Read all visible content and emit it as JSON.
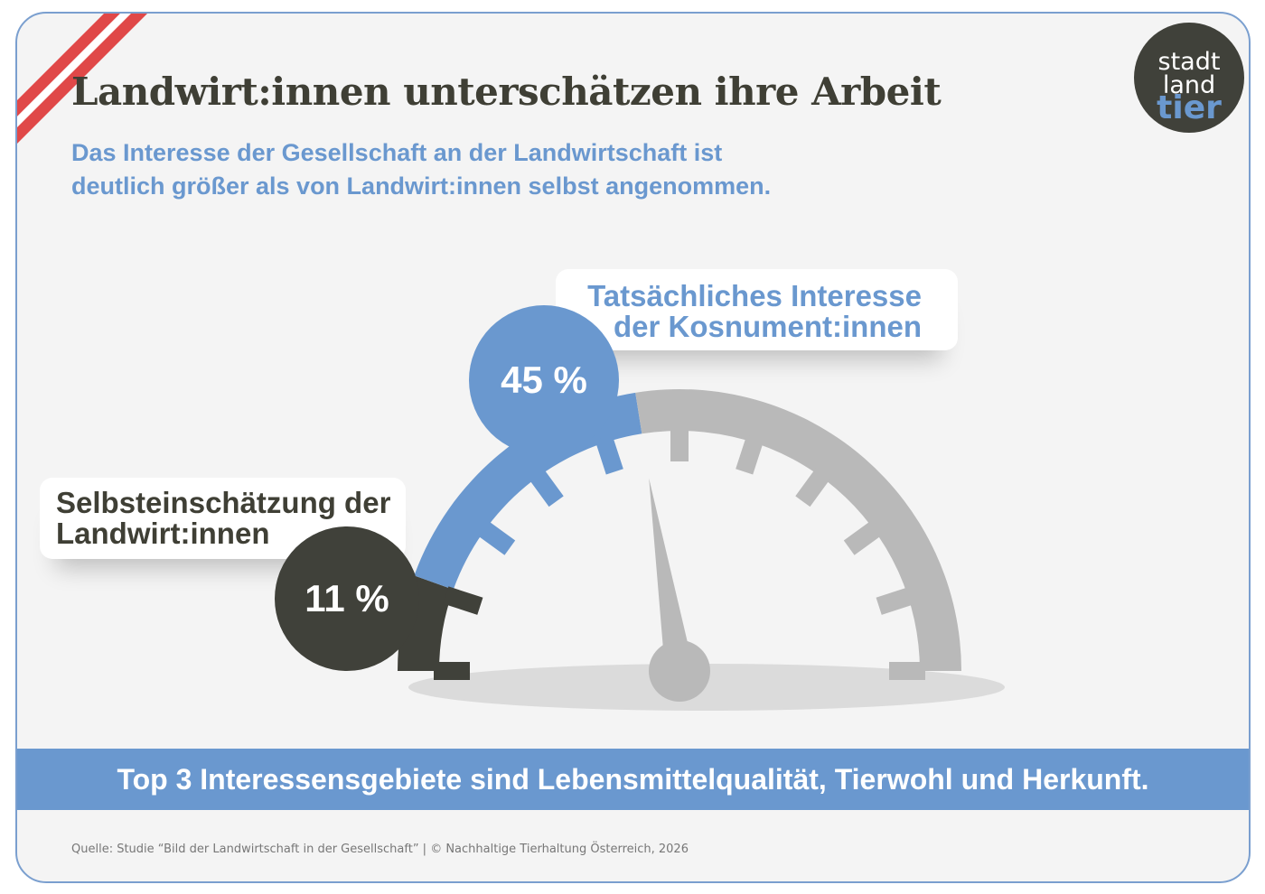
{
  "title": "Landwirt:innen unterschätzen ihre Arbeit",
  "subtitle": {
    "line1": "Das Interesse der Gesellschaft an der Landwirtschaft ist",
    "line2": "deutlich größer als von Landwirt:innen selbst angenommen."
  },
  "logo": {
    "line1": "stadt",
    "line2": "land",
    "line3": "tier"
  },
  "colors": {
    "blue": "#6a98cf",
    "dark": "#40413a",
    "grey": "#b9b9b9",
    "ribbon_red": "#e04848"
  },
  "chart_data": {
    "type": "gauge",
    "range": [
      0,
      100
    ],
    "ticks": 11,
    "series": [
      {
        "name": "Selbsteinschätzung der Landwirt:innen",
        "value": 11,
        "value_label": "11 %"
      },
      {
        "name": "Tatsächliches Interesse der Kosnument:innen",
        "value": 45,
        "value_label": "45 %"
      }
    ],
    "needle_value": 45
  },
  "labels": {
    "real_line1": "Tatsächliches Interesse",
    "real_line2": "der Kosnument:innen",
    "self_line1": "Selbsteinschätzung der",
    "self_line2": "Landwirt:innen"
  },
  "band_text": "Top 3 Interessensgebiete sind Lebensmittelqualität, Tierwohl und Herkunft.",
  "footer": "Quelle:  Studie “Bild der Landwirtschaft in der Gesellschaft”  |  © Nachhaltige Tierhaltung Österreich, 2026"
}
